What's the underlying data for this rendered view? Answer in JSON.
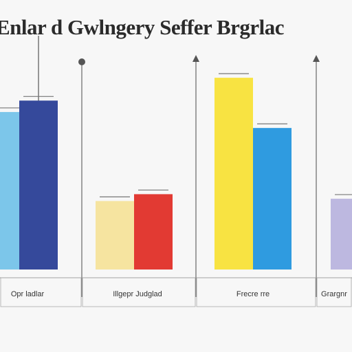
{
  "chart_data": {
    "type": "bar",
    "title": "Enlar d Gwlngery Seffer Brgrlac",
    "xlabel": "",
    "ylabel": "",
    "ylim": [
      0,
      100
    ],
    "grid": false,
    "groups": [
      {
        "label": "Opr ladlar",
        "bars": [
          {
            "value": 69,
            "color": "#7cc6ea"
          },
          {
            "value": 74,
            "color": "#35499b"
          }
        ]
      },
      {
        "label": "Illgepr Judglad",
        "bars": [
          {
            "value": 30,
            "color": "#f6e4a0"
          },
          {
            "value": 33,
            "color": "#e23a33"
          }
        ]
      },
      {
        "label": "Frecre rre",
        "bars": [
          {
            "value": 84,
            "color": "#f8e342"
          },
          {
            "value": 62,
            "color": "#2f9be0"
          }
        ]
      },
      {
        "label": "Grargnr",
        "bars": [
          {
            "value": 31,
            "color": "#bdb8e0"
          }
        ]
      }
    ]
  }
}
